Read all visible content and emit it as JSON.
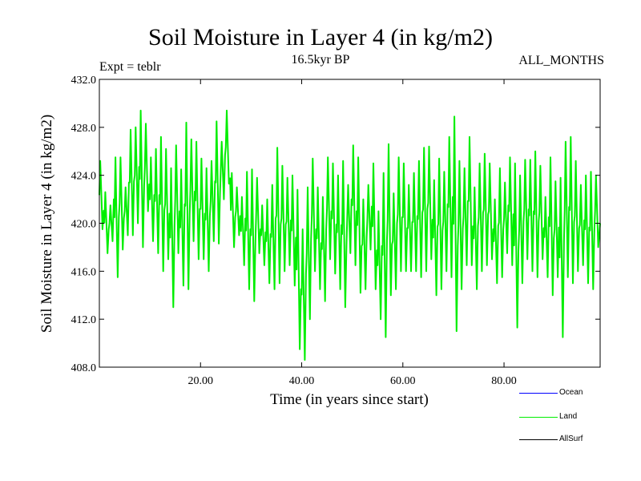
{
  "chart_data": {
    "type": "line",
    "title": "Soil Moisture in Layer 4 (in kg/m2)",
    "subtitle": "16.5kyr BP",
    "expt_label": "Expt = teblr",
    "period_label": "ALL_MONTHS",
    "xlabel": "Time (in years since start)",
    "ylabel": "Soil Moisture in Layer 4 (in kg/m2)",
    "xlim": [
      0,
      99
    ],
    "ylim": [
      408,
      432
    ],
    "x_ticks": [
      20,
      40,
      60,
      80
    ],
    "x_tick_labels": [
      "20.00",
      "40.00",
      "60.00",
      "80.00"
    ],
    "y_ticks": [
      408,
      412,
      416,
      420,
      424,
      428,
      432
    ],
    "y_tick_labels": [
      "408.0",
      "412.0",
      "416.0",
      "420.0",
      "424.0",
      "428.0",
      "432.0"
    ],
    "series": [
      {
        "name": "Ocean",
        "color": "#0000ff",
        "values": []
      },
      {
        "name": "Land",
        "color": "#00ee00",
        "x_start": 0.0,
        "x_step": 1.0,
        "values_annual_peaks": [
          425.2,
          422.6,
          421.5,
          425.5,
          425.5,
          423.0,
          427.8,
          428.0,
          429.4,
          428.3,
          425.5,
          426.2,
          427.2,
          426.2,
          424.6,
          426.5,
          424.5,
          428.4,
          427.0,
          426.8,
          425.4,
          424.6,
          425.2,
          428.5,
          426.8,
          429.4,
          424.2,
          423.0,
          422.2,
          424.3,
          424.5,
          423.8,
          421.5,
          422.0,
          423.2,
          426.3,
          424.8,
          423.8,
          424.0,
          422.8,
          419.5,
          423.0,
          425.4,
          423.0,
          422.2,
          425.5,
          425.0,
          424.0,
          425.2,
          423.2,
          426.5,
          425.5,
          422.0,
          423.2,
          425.0,
          421.0,
          424.2,
          426.6,
          422.5,
          425.5,
          425.0,
          423.2,
          424.2,
          425.2,
          426.3,
          426.4,
          423.6,
          425.4,
          424.3,
          427.2,
          428.9,
          425.2,
          424.6,
          427.2,
          423.0,
          425.0,
          425.8,
          425.0,
          422.0,
          424.6,
          423.4,
          425.5,
          425.0,
          424.0,
          425.3,
          425.3,
          426.0,
          424.8,
          422.2,
          425.5,
          423.5,
          423.8,
          426.8,
          427.2,
          425.2,
          423.2,
          424.0,
          424.3,
          424.0,
          420.5
        ],
        "values_annual_troughs": [
          419.5,
          417.5,
          418.5,
          415.5,
          417.8,
          419.0,
          419.0,
          420.0,
          418.0,
          421.0,
          418.5,
          417.5,
          416.0,
          417.0,
          413.0,
          417.5,
          414.8,
          414.5,
          418.5,
          417.0,
          417.0,
          416.0,
          418.5,
          418.3,
          422.0,
          423.3,
          418.0,
          419.0,
          416.5,
          414.5,
          413.5,
          417.5,
          416.5,
          415.0,
          414.5,
          415.0,
          416.0,
          416.5,
          414.8,
          409.5,
          408.6,
          412.0,
          416.0,
          414.5,
          413.5,
          417.0,
          415.8,
          414.5,
          413.0,
          417.5,
          416.5,
          414.2,
          414.5,
          417.8,
          414.5,
          412.0,
          410.5,
          414.0,
          414.5,
          416.0,
          416.0,
          416.0,
          416.0,
          415.5,
          416.0,
          417.0,
          414.0,
          414.5,
          416.0,
          415.5,
          411.0,
          414.5,
          416.5,
          416.5,
          414.5,
          416.0,
          416.5,
          417.0,
          415.0,
          415.5,
          417.5,
          416.5,
          411.3,
          415.0,
          417.0,
          416.0,
          415.5,
          417.0,
          415.5,
          414.0,
          415.5,
          410.5,
          415.5,
          415.0,
          416.0,
          416.5,
          415.0,
          414.5,
          418.0,
          419.5
        ]
      },
      {
        "name": "AllSurf",
        "color": "#000000",
        "values": []
      }
    ],
    "legend_position": "bottom-right",
    "grid": false
  }
}
